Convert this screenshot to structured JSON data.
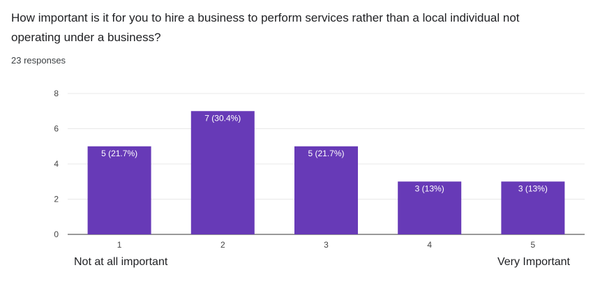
{
  "question": {
    "title": "How important is it for you to hire a business to perform services rather than a local individual not operating under a business?",
    "response_count": "23 responses"
  },
  "chart_data": {
    "type": "bar",
    "categories": [
      "1",
      "2",
      "3",
      "4",
      "5"
    ],
    "values": [
      5,
      7,
      5,
      3,
      3
    ],
    "data_labels": [
      "5 (21.7%)",
      "7 (30.4%)",
      "5 (21.7%)",
      "3 (13%)",
      "3 (13%)"
    ],
    "ylim": [
      0,
      8
    ],
    "yticks": [
      0,
      2,
      4,
      6,
      8
    ],
    "grid": true,
    "scale_low_label": "Not at all important",
    "scale_high_label": "Very Important",
    "bar_color": "#673ab7",
    "grid_color": "#e8e8e8"
  }
}
